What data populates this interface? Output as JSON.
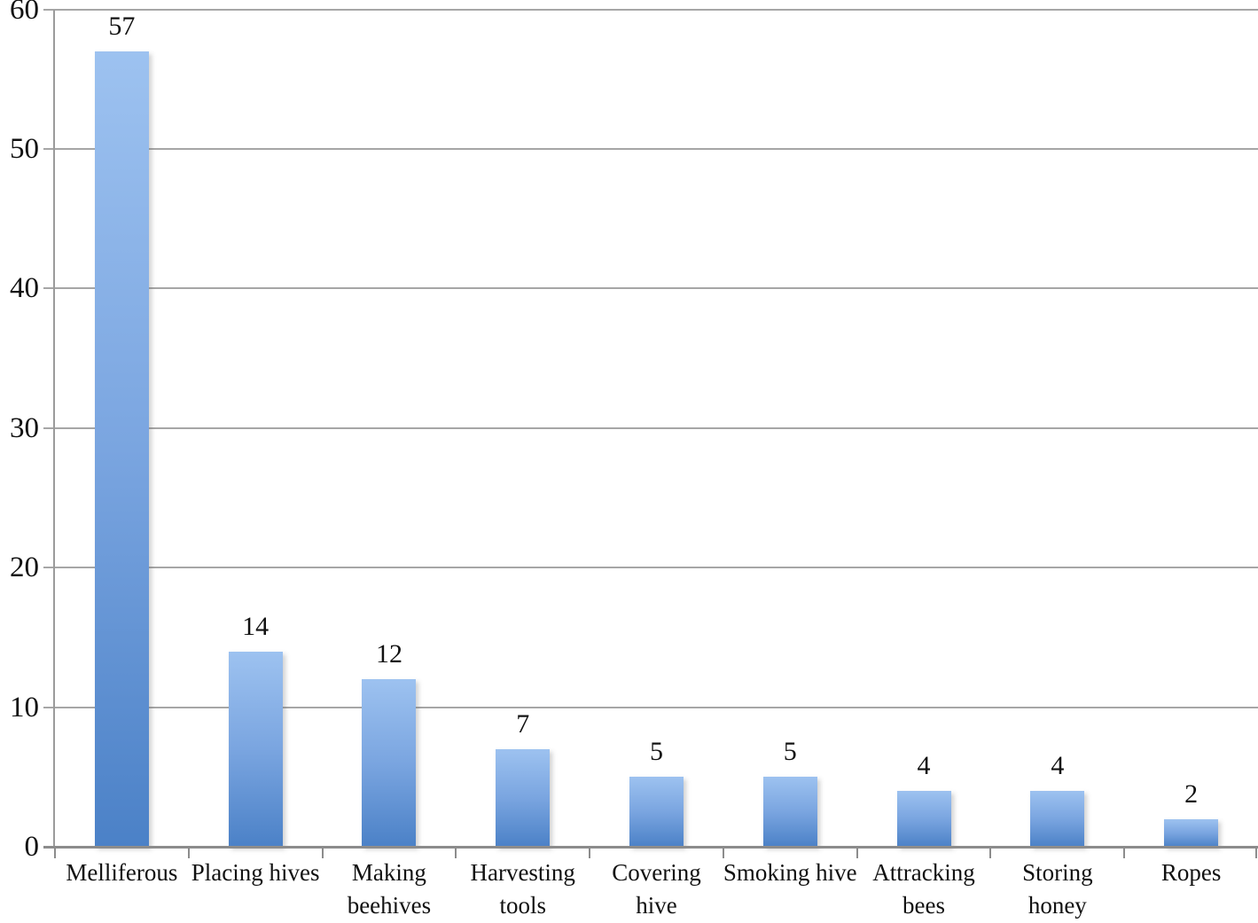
{
  "chart_data": {
    "type": "bar",
    "categories": [
      "Melliferous",
      "Placing hives",
      "Making beehives",
      "Harvesting tools",
      "Covering hive",
      "Smoking hive",
      "Attracking bees",
      "Storing honey",
      "Ropes"
    ],
    "values": [
      57,
      14,
      12,
      7,
      5,
      5,
      4,
      4,
      2
    ],
    "yticks": [
      0,
      10,
      20,
      30,
      40,
      50,
      60
    ],
    "ylim": [
      0,
      60
    ],
    "grid": true,
    "legend": "none",
    "bar_color_top": "#9dc2f0",
    "bar_color_mid": "#7aa5e0",
    "bar_color_bottom": "#4b81c7",
    "gridline_color": "#a6a6a6",
    "axis_color": "#8c8c8c",
    "text_color": "#111111"
  }
}
